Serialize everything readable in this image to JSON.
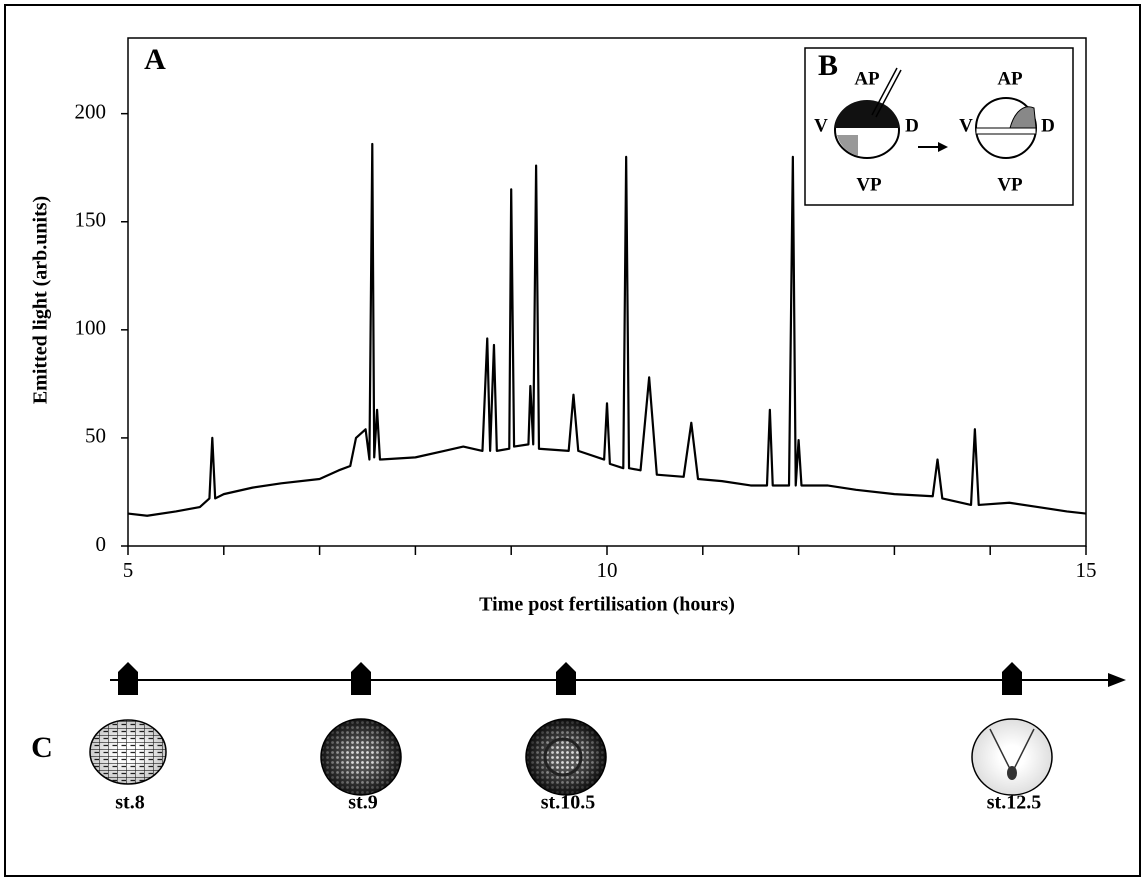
{
  "chart_data": {
    "type": "line",
    "panel_label": "A",
    "xlabel": "Time post fertilisation (hours)",
    "ylabel": "Emitted light (arb.units)",
    "xlim": [
      5,
      15
    ],
    "xticks": [
      5,
      10,
      15
    ],
    "xminorticks": [
      6,
      7,
      8,
      9,
      11,
      12,
      13,
      14
    ],
    "ylim": [
      0,
      235
    ],
    "yticks": [
      0,
      50,
      100,
      150,
      200
    ],
    "color": "#000000",
    "x": [
      5.0,
      5.2,
      5.5,
      5.75,
      5.85,
      5.88,
      5.91,
      6.0,
      6.3,
      6.6,
      7.0,
      7.2,
      7.32,
      7.38,
      7.48,
      7.52,
      7.55,
      7.57,
      7.6,
      7.63,
      8.0,
      8.3,
      8.5,
      8.7,
      8.75,
      8.78,
      8.82,
      8.85,
      8.98,
      9.0,
      9.03,
      9.18,
      9.2,
      9.23,
      9.26,
      9.29,
      9.6,
      9.65,
      9.7,
      9.97,
      10.0,
      10.03,
      10.17,
      10.2,
      10.23,
      10.35,
      10.44,
      10.52,
      10.8,
      10.88,
      10.95,
      11.2,
      11.5,
      11.67,
      11.7,
      11.73,
      11.9,
      11.94,
      11.97,
      12.0,
      12.03,
      12.3,
      12.6,
      13.0,
      13.4,
      13.45,
      13.5,
      13.8,
      13.84,
      13.88,
      14.2,
      14.5,
      14.8,
      15.0
    ],
    "values": [
      15,
      14,
      16,
      18,
      22,
      50,
      22,
      24,
      27,
      29,
      31,
      35,
      37,
      50,
      54,
      40,
      186,
      41,
      63,
      40,
      41,
      44,
      46,
      44,
      96,
      44,
      93,
      44,
      45,
      165,
      46,
      47,
      74,
      47,
      176,
      45,
      44,
      70,
      44,
      40,
      66,
      38,
      36,
      180,
      36,
      35,
      78,
      33,
      32,
      57,
      31,
      30,
      28,
      28,
      63,
      28,
      28,
      180,
      28,
      49,
      28,
      28,
      26,
      24,
      23,
      40,
      22,
      19,
      54,
      19,
      20,
      18,
      16,
      15
    ],
    "inset": {
      "label": "B",
      "left": {
        "top": "AP",
        "left": "V",
        "right": "D",
        "bottom": "VP"
      },
      "right": {
        "top": "AP",
        "left": "V",
        "right": "D",
        "bottom": "VP"
      }
    },
    "timeline": {
      "label": "C",
      "stages": [
        "st.8",
        "st.9",
        "st.10.5",
        "st.12.5"
      ]
    }
  }
}
